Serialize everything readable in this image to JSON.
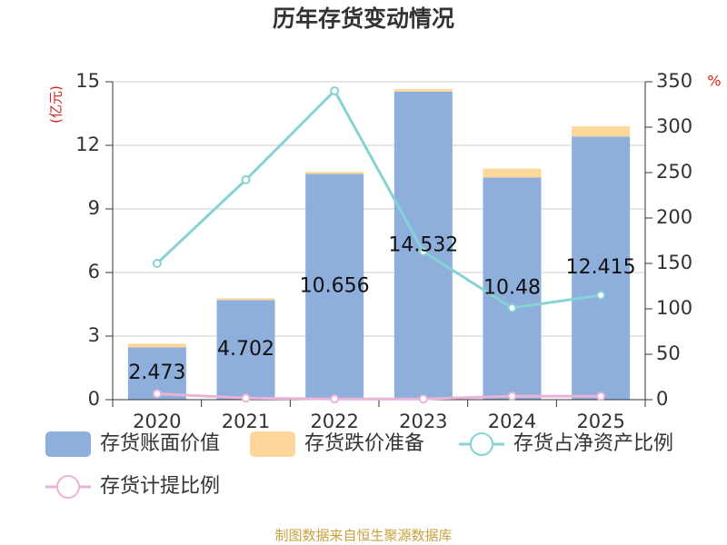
{
  "chart_data": {
    "type": "bar",
    "title": "历年存货变动情况",
    "y_label": "(亿元)",
    "y2_label": "%",
    "source": "制图数据来自恒生聚源数据库",
    "categories": [
      "2020",
      "2021",
      "2022",
      "2023",
      "2024",
      "2025"
    ],
    "series": [
      {
        "name": "存货账面价值",
        "type": "bar",
        "color": "#8eaedb",
        "values": [
          2.473,
          4.702,
          10.656,
          14.532,
          10.48,
          12.415
        ]
      },
      {
        "name": "存货跌价准备",
        "type": "bar",
        "color": "#fdd89a",
        "values": [
          0.17,
          0.08,
          0.09,
          0.12,
          0.42,
          0.48
        ]
      },
      {
        "name": "存货占净资产比例",
        "type": "line",
        "axis": "y2",
        "color": "#86d2d4",
        "values": [
          150,
          242,
          340,
          163,
          101,
          115
        ]
      },
      {
        "name": "存货计提比例",
        "type": "line",
        "axis": "y2",
        "color": "#e8b4d8",
        "values": [
          6.5,
          1.7,
          0.8,
          0.8,
          3.9,
          3.7
        ]
      }
    ],
    "ylim": [
      0,
      15
    ],
    "yticks": [
      0,
      3,
      6,
      9,
      12,
      15
    ],
    "y2lim": [
      0,
      350
    ],
    "y2ticks": [
      0,
      50,
      100,
      150,
      200,
      250,
      300,
      350
    ],
    "grid": true
  }
}
